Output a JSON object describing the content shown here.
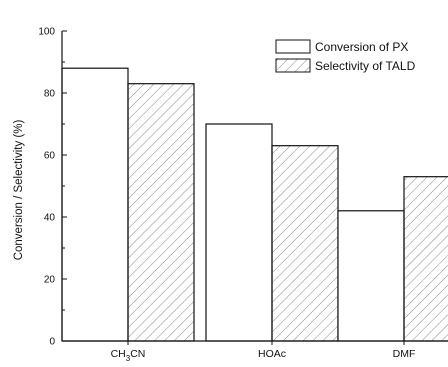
{
  "chart_data": {
    "type": "bar",
    "categories": [
      "CH3CN",
      "HOAc",
      "DMF"
    ],
    "category_labels": [
      {
        "main": "CH",
        "sub": "3",
        "tail": "CN"
      },
      {
        "main": "HOAc",
        "sub": "",
        "tail": ""
      },
      {
        "main": "DMF",
        "sub": "",
        "tail": ""
      }
    ],
    "series": [
      {
        "name": "Conversion of PX",
        "values": [
          88,
          70,
          42
        ],
        "fill": "plain"
      },
      {
        "name": "Selectivity of TALD",
        "values": [
          83,
          63,
          53
        ],
        "fill": "hatched"
      }
    ],
    "title": "",
    "xlabel": "",
    "ylabel": "Conversion / Selectivity (%)",
    "ylim": [
      0,
      100
    ],
    "yticks": [
      0,
      20,
      40,
      60,
      80,
      100
    ],
    "grid": false,
    "legend_position": "top-right",
    "colors": {
      "bar_fill": "#ffffff",
      "stroke": "#111111",
      "hatch": "#888888"
    }
  }
}
